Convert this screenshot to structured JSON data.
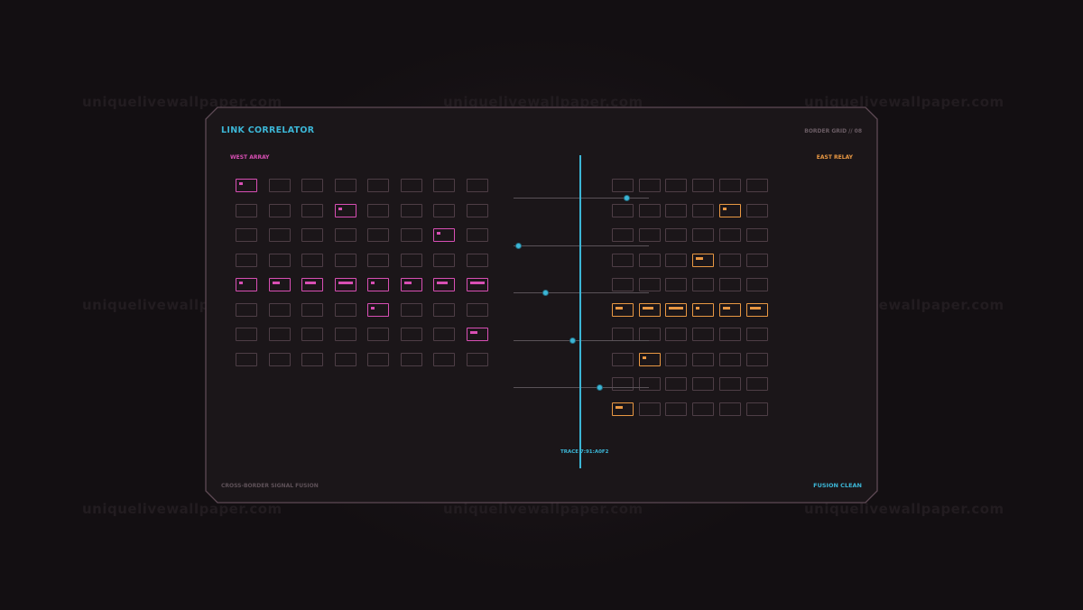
{
  "watermark": "uniquelivewallpaper.com",
  "header": {
    "title": "LINK CORRELATOR",
    "grid_label": "BORDER GRID // 08"
  },
  "west": {
    "label": "WEST ARRAY",
    "color": "#d84fb4",
    "rows": 8,
    "cols": 8,
    "active": [
      [
        [
          0,
          1
        ]
      ],
      [
        [
          3,
          1
        ]
      ],
      [
        [
          6,
          1
        ]
      ],
      [],
      [
        [
          0,
          1
        ],
        [
          1,
          2
        ],
        [
          2,
          3
        ],
        [
          3,
          4
        ],
        [
          4,
          1
        ],
        [
          5,
          2
        ],
        [
          6,
          3
        ],
        [
          7,
          4
        ]
      ],
      [
        [
          4,
          1
        ]
      ],
      [
        [
          7,
          2
        ]
      ],
      []
    ]
  },
  "east": {
    "label": "EAST RELAY",
    "color": "#e99843",
    "rows": 10,
    "cols": 6,
    "active": [
      [],
      [
        [
          4,
          1
        ]
      ],
      [],
      [
        [
          3,
          2
        ]
      ],
      [],
      [
        [
          0,
          2
        ],
        [
          1,
          3
        ],
        [
          2,
          4
        ],
        [
          3,
          1
        ],
        [
          4,
          2
        ],
        [
          5,
          3
        ]
      ],
      [],
      [
        [
          1,
          1
        ]
      ],
      [],
      [
        [
          0,
          2
        ]
      ]
    ]
  },
  "trace": {
    "label": "TRACE 7:91:A0F2",
    "color": "#3cb6d6",
    "taps": 5
  },
  "footer": {
    "left": "CROSS-BORDER SIGNAL FUSION",
    "right": "FUSION CLEAN"
  }
}
